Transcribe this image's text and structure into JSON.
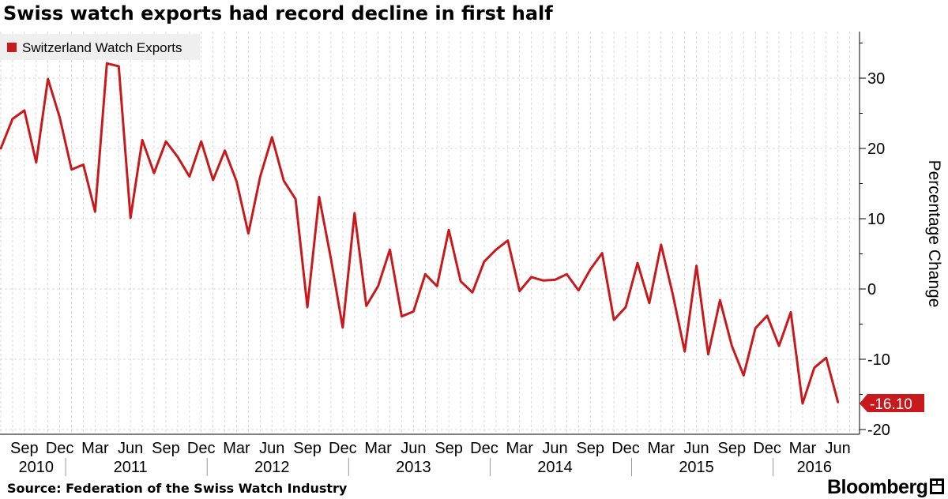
{
  "title": "Swiss watch exports had record decline in first half",
  "source": "Source: Federation of the Swiss Watch Industry",
  "brand": "Bloomberg",
  "brand_mark_icon": "bloomberg-terminal-icon",
  "colors": {
    "series": "#c8191c",
    "grid": "#d9d9d9",
    "legend_bg": "#efefef",
    "axis": "#000000"
  },
  "chart_data": {
    "type": "line",
    "title": "Swiss watch exports had record decline in first half",
    "ylabel": "Percentage Change",
    "xlabel": "",
    "ylim": [
      -21,
      37
    ],
    "yticks": [
      -20,
      -10,
      0,
      10,
      20,
      30
    ],
    "grid": true,
    "legend_position": "top-left",
    "x_start": "2010-07",
    "x_end": "2016-07",
    "month_ticks": [
      "Sep",
      "Dec",
      "Mar",
      "Jun",
      "Sep",
      "Dec",
      "Mar",
      "Jun",
      "Sep",
      "Dec",
      "Mar",
      "Jun",
      "Sep",
      "Dec",
      "Mar",
      "Jun",
      "Sep",
      "Dec",
      "Mar",
      "Jun",
      "Sep",
      "Dec",
      "Mar",
      "Jun"
    ],
    "month_tick_dates": [
      "2010-09",
      "2010-12",
      "2011-03",
      "2011-06",
      "2011-09",
      "2011-12",
      "2012-03",
      "2012-06",
      "2012-09",
      "2012-12",
      "2013-03",
      "2013-06",
      "2013-09",
      "2013-12",
      "2014-03",
      "2014-06",
      "2014-09",
      "2014-12",
      "2015-03",
      "2015-06",
      "2015-09",
      "2015-12",
      "2016-03",
      "2016-06"
    ],
    "year_labels": [
      "2010",
      "2011",
      "2012",
      "2013",
      "2014",
      "2015",
      "2016"
    ],
    "year_label_dates": [
      "2010-10",
      "2011-06",
      "2012-06",
      "2013-06",
      "2014-06",
      "2015-06",
      "2016-04"
    ],
    "series": [
      {
        "name": "Switzerland Watch Exports",
        "dates": [
          "2010-07",
          "2010-08",
          "2010-09",
          "2010-10",
          "2010-11",
          "2010-12",
          "2011-01",
          "2011-02",
          "2011-03",
          "2011-04",
          "2011-05",
          "2011-06",
          "2011-07",
          "2011-08",
          "2011-09",
          "2011-10",
          "2011-11",
          "2011-12",
          "2012-01",
          "2012-02",
          "2012-03",
          "2012-04",
          "2012-05",
          "2012-06",
          "2012-07",
          "2012-08",
          "2012-09",
          "2012-10",
          "2012-11",
          "2012-12",
          "2013-01",
          "2013-02",
          "2013-03",
          "2013-04",
          "2013-05",
          "2013-06",
          "2013-07",
          "2013-08",
          "2013-09",
          "2013-10",
          "2013-11",
          "2013-12",
          "2014-01",
          "2014-02",
          "2014-03",
          "2014-04",
          "2014-05",
          "2014-06",
          "2014-07",
          "2014-08",
          "2014-09",
          "2014-10",
          "2014-11",
          "2014-12",
          "2015-01",
          "2015-02",
          "2015-03",
          "2015-04",
          "2015-05",
          "2015-06",
          "2015-07",
          "2015-08",
          "2015-09",
          "2015-10",
          "2015-11",
          "2015-12",
          "2016-01",
          "2016-02",
          "2016-03",
          "2016-04",
          "2016-05",
          "2016-06"
        ],
        "values": [
          20.0,
          24.2,
          25.4,
          18.0,
          29.9,
          24.4,
          17.0,
          17.7,
          11.0,
          32.1,
          31.7,
          10.1,
          21.2,
          16.5,
          21.0,
          18.8,
          16.0,
          21.0,
          15.5,
          19.7,
          15.3,
          7.9,
          16.0,
          21.6,
          15.4,
          12.8,
          -2.6,
          13.1,
          4.3,
          -5.5,
          10.8,
          -2.4,
          0.4,
          5.6,
          -3.9,
          -3.2,
          2.1,
          0.4,
          8.4,
          1.1,
          -0.5,
          3.9,
          5.6,
          6.9,
          -0.3,
          1.7,
          1.2,
          1.3,
          2.1,
          -0.2,
          2.8,
          5.1,
          -4.4,
          -2.6,
          3.7,
          -2.0,
          6.3,
          -0.8,
          -8.9,
          3.3,
          -9.3,
          -1.6,
          -8.1,
          -12.3,
          -5.6,
          -3.8,
          -8.1,
          -3.3,
          -16.3,
          -11.2,
          -9.8,
          -16.1
        ]
      }
    ],
    "last_value_label": "-16.10"
  }
}
